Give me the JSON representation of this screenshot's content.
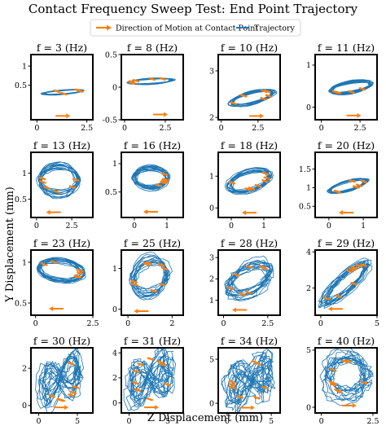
{
  "chart_data": {
    "type": "line",
    "title": "Contact Frequency Sweep Test: End Point Trajectory",
    "xlabel": "Z Displacement (mm)",
    "ylabel": "Y Displacement (mm)",
    "legend": {
      "placement": "top",
      "entries": [
        {
          "label": "Direction of Motion at Contact Point",
          "color": "#ff7f0e",
          "kind": "arrow"
        },
        {
          "label": "Trajectory",
          "color": "#1f77b4",
          "kind": "line"
        }
      ]
    },
    "colors": {
      "trajectory": "#1f77b4",
      "direction": "#ff7f0e"
    },
    "panels": [
      {
        "title": "f = 3 (Hz)",
        "xlim": [
          -0.3,
          2.8
        ],
        "ylim": [
          -0.4,
          1.3
        ],
        "xticks": [
          0,
          2.5
        ],
        "yticks": [
          0.5,
          1.0
        ],
        "center": [
          1.3,
          0.32
        ],
        "radius": [
          1.0,
          0.05
        ],
        "tilt": 0.04,
        "noise": 0.05,
        "spread": 0.08,
        "arrow": "right",
        "arrow_at": [
          1.3,
          -0.3
        ],
        "dots": 5,
        "seed": 3
      },
      {
        "title": "f = 8 (Hz)",
        "xlim": [
          -0.2,
          3.6
        ],
        "ylim": [
          -0.5,
          0.5
        ],
        "xticks": [
          0,
          2.5
        ],
        "yticks": [
          -0.5,
          0.0,
          0.5
        ],
        "center": [
          1.6,
          0.09
        ],
        "radius": [
          1.4,
          0.04
        ],
        "tilt": 0.015,
        "noise": 0.03,
        "spread": 0.06,
        "arrow": "right",
        "arrow_at": [
          2.2,
          -0.42
        ],
        "dots": 5,
        "seed": 8
      },
      {
        "title": "f = 10 (Hz)",
        "xlim": [
          -0.2,
          4.0
        ],
        "ylim": [
          1.95,
          3.35
        ],
        "xticks": [
          0,
          2.5
        ],
        "yticks": [
          2,
          3
        ],
        "center": [
          2.1,
          2.42
        ],
        "radius": [
          1.5,
          0.12
        ],
        "tilt": 0.08,
        "noise": 0.05,
        "spread": 0.1,
        "arrow": "right",
        "arrow_at": [
          2.4,
          2.03
        ],
        "dots": 6,
        "seed": 10
      },
      {
        "title": "f = 11 (Hz)",
        "xlim": [
          -0.4,
          3.6
        ],
        "ylim": [
          -0.3,
          1.25
        ],
        "xticks": [
          0,
          2.5
        ],
        "yticks": [
          0,
          1
        ],
        "center": [
          1.9,
          0.47
        ],
        "radius": [
          1.3,
          0.13
        ],
        "tilt": 0.06,
        "noise": 0.05,
        "spread": 0.12,
        "arrow": "right",
        "arrow_at": [
          2.1,
          -0.2
        ],
        "dots": 6,
        "seed": 11
      },
      {
        "title": "f = 13 (Hz)",
        "xlim": [
          -0.4,
          4.0
        ],
        "ylim": [
          0.15,
          1.4
        ],
        "xticks": [
          0,
          2.5
        ],
        "yticks": [
          0.5,
          1.0
        ],
        "center": [
          1.6,
          0.88
        ],
        "radius": [
          1.4,
          0.28
        ],
        "tilt": 0.0,
        "noise": 0.08,
        "spread": 0.18,
        "arrow": "left",
        "arrow_at": [
          1.2,
          0.25
        ],
        "dots": 7,
        "seed": 13
      },
      {
        "title": "f = 16 (Hz)",
        "xlim": [
          -0.4,
          1.5
        ],
        "ylim": [
          0.05,
          1.2
        ],
        "xticks": [
          0,
          1
        ],
        "yticks": [
          0.5,
          1.0
        ],
        "center": [
          0.5,
          0.75
        ],
        "radius": [
          0.55,
          0.18
        ],
        "tilt": 0.0,
        "noise": 0.05,
        "spread": 0.12,
        "arrow": "left",
        "arrow_at": [
          0.5,
          0.15
        ],
        "dots": 6,
        "seed": 16
      },
      {
        "title": "f = 18 (Hz)",
        "xlim": [
          -0.4,
          1.5
        ],
        "ylim": [
          -0.3,
          1.75
        ],
        "xticks": [
          0,
          1
        ],
        "yticks": [
          0,
          1
        ],
        "center": [
          0.55,
          0.85
        ],
        "radius": [
          0.65,
          0.3
        ],
        "tilt": 0.25,
        "noise": 0.07,
        "spread": 0.15,
        "arrow": "left",
        "arrow_at": [
          0.55,
          -0.15
        ],
        "dots": 7,
        "seed": 18
      },
      {
        "title": "f = 20 (Hz)",
        "xlim": [
          -0.4,
          1.4
        ],
        "ylim": [
          0.2,
          1.95
        ],
        "xticks": [
          0,
          1
        ],
        "yticks": [
          0.5,
          1.0,
          1.5
        ],
        "center": [
          0.55,
          1.05
        ],
        "radius": [
          0.55,
          0.12
        ],
        "tilt": 0.25,
        "noise": 0.05,
        "spread": 0.1,
        "arrow": "left",
        "arrow_at": [
          0.5,
          0.33
        ],
        "dots": 6,
        "seed": 20
      },
      {
        "title": "f = 23 (Hz)",
        "xlim": [
          -0.2,
          2.5
        ],
        "ylim": [
          0.35,
          1.15
        ],
        "xticks": [
          0,
          2.5
        ],
        "yticks": [
          0.5,
          1.0
        ],
        "center": [
          1.1,
          0.9
        ],
        "radius": [
          1.0,
          0.12
        ],
        "tilt": -0.03,
        "noise": 0.07,
        "spread": 0.15,
        "arrow": "left",
        "arrow_at": [
          0.9,
          0.43
        ],
        "dots": 6,
        "seed": 23
      },
      {
        "title": "f = 25 (Hz)",
        "xlim": [
          -0.3,
          2.5
        ],
        "ylim": [
          -0.15,
          1.45
        ],
        "xticks": [
          0,
          2
        ],
        "yticks": [
          0,
          1
        ],
        "center": [
          1.0,
          0.78
        ],
        "radius": [
          0.85,
          0.42
        ],
        "tilt": 0.1,
        "noise": 0.12,
        "spread": 0.3,
        "arrow": "left",
        "arrow_at": [
          0.6,
          -0.05
        ],
        "dots": 8,
        "seed": 25
      },
      {
        "title": "f = 28 (Hz)",
        "xlim": [
          -0.3,
          3.2
        ],
        "ylim": [
          0.3,
          3.35
        ],
        "xticks": [
          0,
          2.5
        ],
        "yticks": [
          1,
          2,
          3
        ],
        "center": [
          1.4,
          1.95
        ],
        "radius": [
          1.2,
          0.7
        ],
        "tilt": 0.3,
        "noise": 0.2,
        "spread": 0.35,
        "arrow": "left",
        "arrow_at": [
          0.9,
          0.55
        ],
        "dots": 8,
        "seed": 28
      },
      {
        "title": "f = 29 (Hz)",
        "xlim": [
          -0.5,
          5.0
        ],
        "ylim": [
          0.5,
          4.1
        ],
        "xticks": [
          0,
          5
        ],
        "yticks": [
          2,
          4
        ],
        "center": [
          2.2,
          2.3
        ],
        "radius": [
          2.0,
          0.55
        ],
        "tilt": 0.5,
        "noise": 0.2,
        "spread": 0.35,
        "arrow": "left",
        "arrow_at": [
          1.3,
          0.85
        ],
        "dots": 8,
        "seed": 29
      },
      {
        "title": "f = 30 (Hz)",
        "xlim": [
          -1.0,
          7.0
        ],
        "ylim": [
          -0.4,
          3.1
        ],
        "xticks": [
          0,
          5
        ],
        "yticks": [
          0,
          2
        ],
        "center": [
          2.9,
          1.4
        ],
        "radius": [
          2.4,
          1.3
        ],
        "tilt": 0.0,
        "noise": 0.25,
        "spread": 0.45,
        "figure8": true,
        "arrow": "right",
        "arrow_at": [
          2.9,
          -0.1
        ],
        "dots": 9,
        "seed": 30
      },
      {
        "title": "f = 31 (Hz)",
        "xlim": [
          -1.0,
          7.0
        ],
        "ylim": [
          -0.8,
          4.4
        ],
        "xticks": [
          0,
          5
        ],
        "yticks": [
          0,
          2,
          4
        ],
        "center": [
          2.9,
          1.9
        ],
        "radius": [
          2.5,
          1.9
        ],
        "tilt": 0.0,
        "noise": 0.3,
        "spread": 0.5,
        "figure8": true,
        "arrow": "right",
        "arrow_at": [
          2.9,
          -0.35
        ],
        "dots": 9,
        "seed": 31
      },
      {
        "title": "f = 34 (Hz)",
        "xlim": [
          -1.0,
          6.0
        ],
        "ylim": [
          -1.1,
          6.3
        ],
        "xticks": [
          0,
          5
        ],
        "yticks": [
          0,
          5
        ],
        "center": [
          2.5,
          2.6
        ],
        "radius": [
          2.3,
          2.6
        ],
        "tilt": 0.0,
        "noise": 0.35,
        "spread": 0.55,
        "figure8": true,
        "arrow": "right",
        "arrow_at": [
          2.3,
          -0.5
        ],
        "dots": 9,
        "seed": 34
      },
      {
        "title": "f = 40 (Hz)",
        "xlim": [
          -0.3,
          2.7
        ],
        "ylim": [
          -0.5,
          5.2
        ],
        "xticks": [
          0,
          2.5
        ],
        "yticks": [
          0,
          5
        ],
        "center": [
          1.3,
          2.6
        ],
        "radius": [
          0.95,
          1.7
        ],
        "tilt": 0.0,
        "noise": 0.3,
        "spread": 0.5,
        "arrow": "right",
        "arrow_at": [
          1.35,
          0.15
        ],
        "dots": 8,
        "seed": 40
      }
    ]
  }
}
